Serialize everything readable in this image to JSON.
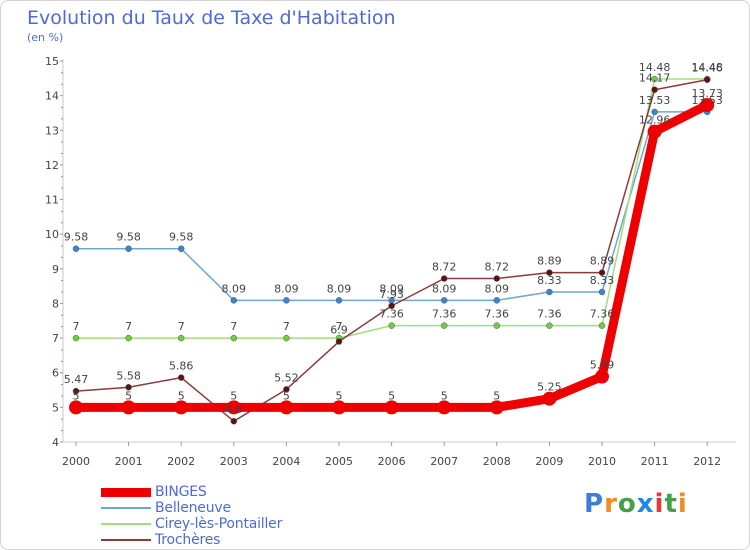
{
  "title": "Evolution du Taux de Taxe d'Habitation",
  "unit_label": "(en %)",
  "logo": {
    "letters": [
      "P",
      "r",
      "o",
      "x",
      "i",
      "t",
      "i"
    ],
    "colors": [
      "#3a7fd5",
      "#f28c1e",
      "#43a047",
      "#1e88e5",
      "#e53935",
      "#43a047",
      "#f28c1e"
    ]
  },
  "chart_data": {
    "type": "line",
    "title": "Evolution du Taux de Taxe d'Habitation",
    "ylabel": "(en %)",
    "xlabel": "",
    "x": [
      "2000",
      "2001",
      "2002",
      "2003",
      "2004",
      "2005",
      "2006",
      "2007",
      "2008",
      "2009",
      "2010",
      "2011",
      "2012"
    ],
    "ylim": [
      4,
      15
    ],
    "yticks": [
      "4",
      "5",
      "6",
      "7",
      "8",
      "9",
      "10",
      "11",
      "12",
      "13",
      "14",
      "15"
    ],
    "grid": false,
    "legend_position": "bottom-left",
    "series": [
      {
        "name": "Belleneuve",
        "color": "#6fa6d6",
        "marker": "#3a86cc",
        "values": [
          9.58,
          9.58,
          9.58,
          8.09,
          8.09,
          8.09,
          8.09,
          8.09,
          8.09,
          8.33,
          8.33,
          13.53,
          13.53
        ],
        "labels": [
          "9.58",
          "9.58",
          "9.58",
          "8.09",
          "8.09",
          "8.09",
          "8.09",
          "8.09",
          "8.09",
          "8.33",
          "8.33",
          "13.53",
          "13.53"
        ]
      },
      {
        "name": "Cirey-lès-Pontailler",
        "color": "#9fe07a",
        "marker": "#6fcf3a",
        "values": [
          7,
          7,
          7,
          7,
          7,
          7,
          7.36,
          7.36,
          7.36,
          7.36,
          7.36,
          14.48,
          14.48
        ],
        "labels": [
          "7",
          "7",
          "7",
          "7",
          "7",
          "7",
          "7.36",
          "7.36",
          "7.36",
          "7.36",
          "7.36",
          "14.48",
          "14.48"
        ]
      },
      {
        "name": "Trochères",
        "color": "#8c3a3a",
        "marker": "#5a1414",
        "values": [
          5.47,
          5.58,
          5.86,
          4.6,
          5.52,
          6.9,
          7.93,
          8.72,
          8.72,
          8.89,
          8.89,
          14.17,
          14.46
        ],
        "labels": [
          "5.47",
          "5.58",
          "5.86",
          "4.6",
          "5.52",
          "6.9",
          "7.93",
          "8.72",
          "8.72",
          "8.89",
          "8.89",
          "14.17",
          "14.46"
        ]
      },
      {
        "name": "BINGES",
        "color": "#ee0000",
        "marker": "#ee0000",
        "values": [
          5,
          5,
          5,
          5,
          5,
          5,
          5,
          5,
          5,
          5.25,
          5.89,
          12.96,
          13.73
        ],
        "labels": [
          "5",
          "5",
          "5",
          "5",
          "5",
          "5",
          "5",
          "5",
          "5",
          "5.25",
          "5.89",
          "12.96",
          "13.73"
        ]
      }
    ],
    "legend": [
      "BINGES",
      "Belleneuve",
      "Cirey-lès-Pontailler",
      "Trochères"
    ]
  }
}
